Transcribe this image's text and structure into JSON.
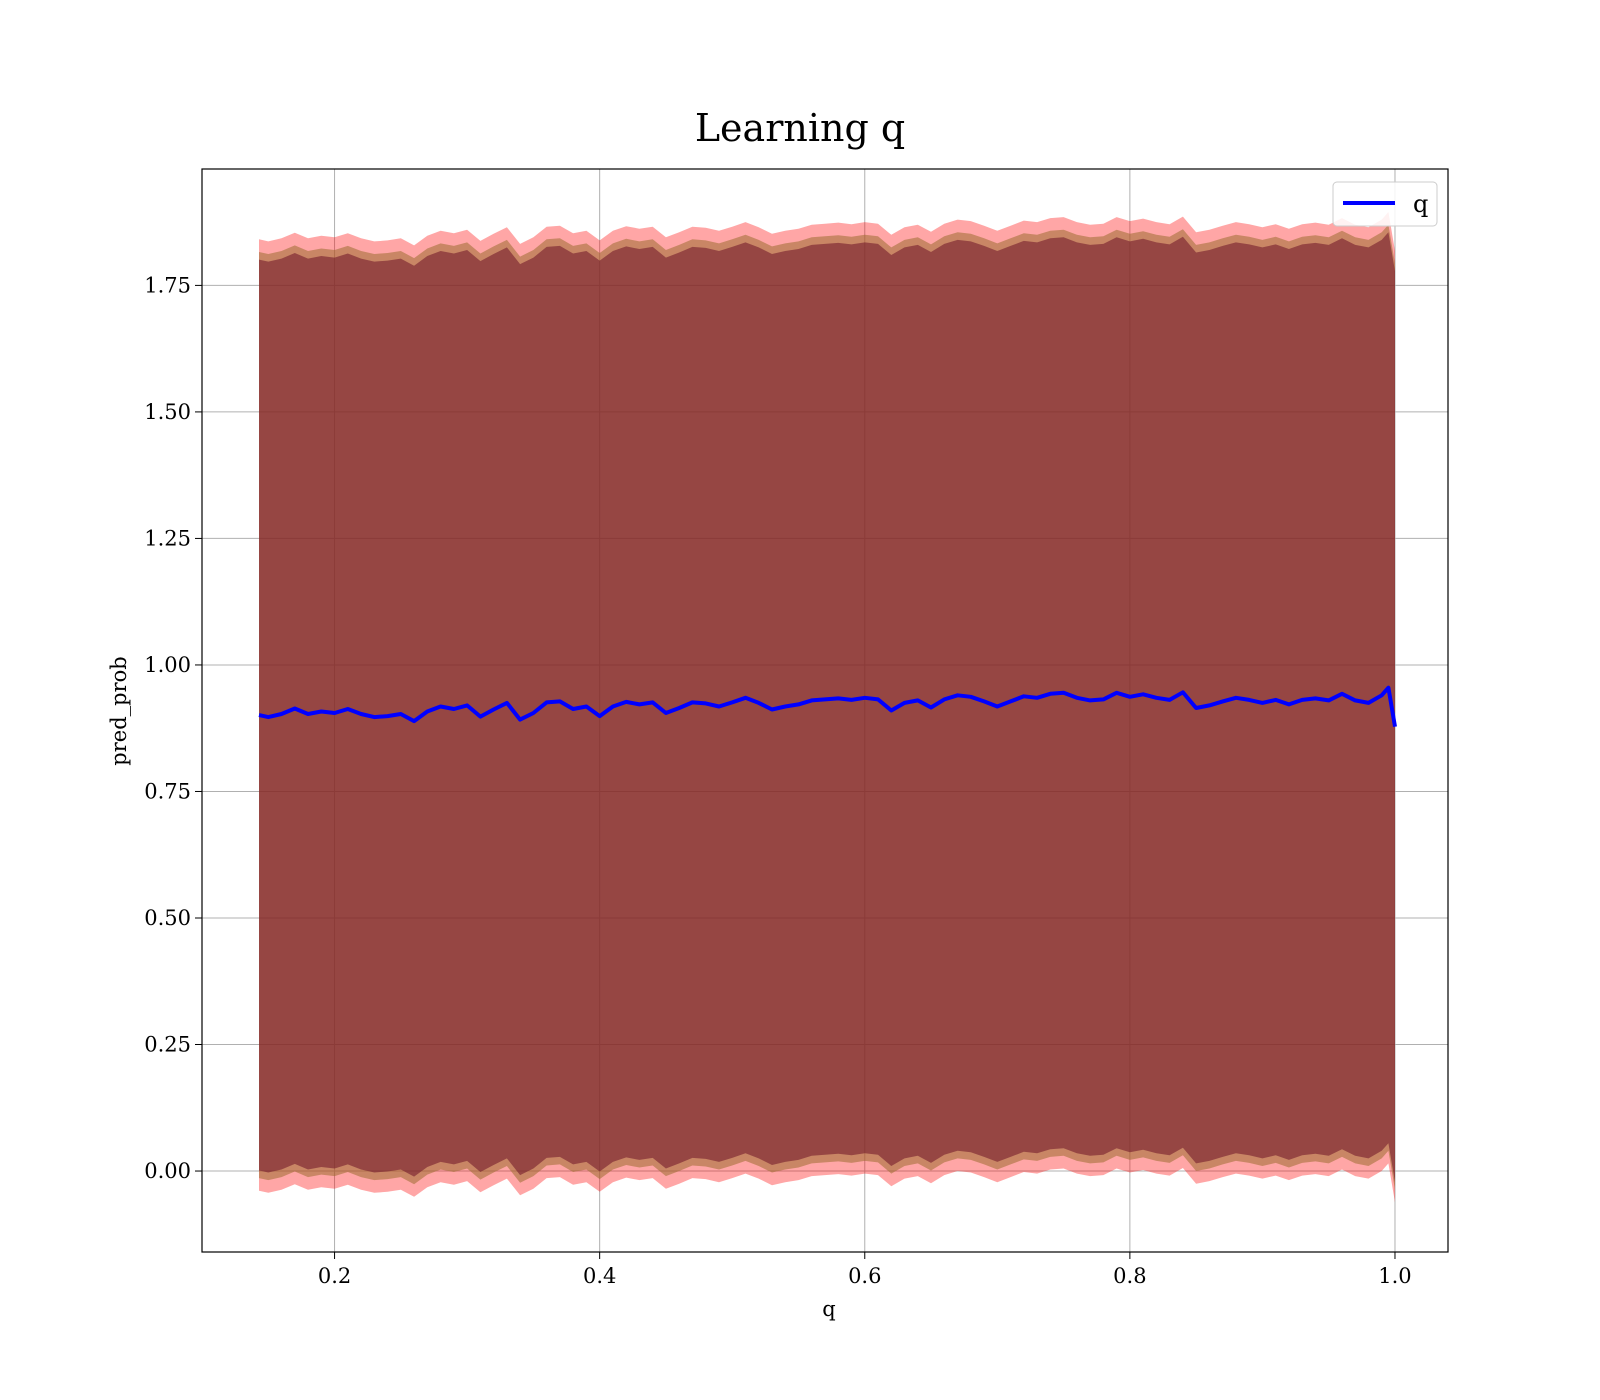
{
  "chart_data": {
    "type": "line",
    "title": "Learning q",
    "xlabel": "q",
    "ylabel": "pred_prob",
    "xlim": [
      0.1,
      1.04
    ],
    "ylim": [
      -0.16,
      1.98
    ],
    "xticks": [
      0.2,
      0.4,
      0.6,
      0.8,
      1.0
    ],
    "xtick_labels": [
      "0.2",
      "0.4",
      "0.6",
      "0.8",
      "1.0"
    ],
    "yticks": [
      0.0,
      0.25,
      0.5,
      0.75,
      1.0,
      1.25,
      1.5,
      1.75
    ],
    "ytick_labels": [
      "0.00",
      "0.25",
      "0.50",
      "0.75",
      "1.00",
      "1.25",
      "1.50",
      "1.75"
    ],
    "grid": true,
    "legend": {
      "placement": "upper right",
      "entries": [
        "q"
      ]
    },
    "colors": {
      "line": "#0000ff",
      "band_outer": "#ff0000",
      "band_mid": "#9c6b30",
      "band_inner": "#6b1228",
      "grid": "#b0b0b0"
    },
    "series": [
      {
        "name": "q",
        "x": [
          0.143,
          0.15,
          0.16,
          0.17,
          0.18,
          0.19,
          0.2,
          0.21,
          0.22,
          0.23,
          0.24,
          0.25,
          0.26,
          0.27,
          0.28,
          0.29,
          0.3,
          0.31,
          0.32,
          0.33,
          0.34,
          0.35,
          0.36,
          0.37,
          0.38,
          0.39,
          0.4,
          0.41,
          0.42,
          0.43,
          0.44,
          0.45,
          0.46,
          0.47,
          0.48,
          0.49,
          0.5,
          0.51,
          0.52,
          0.53,
          0.54,
          0.55,
          0.56,
          0.57,
          0.58,
          0.59,
          0.6,
          0.61,
          0.62,
          0.63,
          0.64,
          0.65,
          0.66,
          0.67,
          0.68,
          0.69,
          0.7,
          0.71,
          0.72,
          0.73,
          0.74,
          0.75,
          0.76,
          0.77,
          0.78,
          0.79,
          0.8,
          0.81,
          0.82,
          0.83,
          0.84,
          0.85,
          0.86,
          0.87,
          0.88,
          0.89,
          0.9,
          0.91,
          0.92,
          0.93,
          0.94,
          0.95,
          0.96,
          0.97,
          0.98,
          0.99,
          0.995,
          1.0
        ],
        "y": [
          0.901,
          0.897,
          0.903,
          0.914,
          0.903,
          0.908,
          0.905,
          0.913,
          0.903,
          0.897,
          0.899,
          0.903,
          0.889,
          0.908,
          0.918,
          0.913,
          0.92,
          0.898,
          0.912,
          0.925,
          0.892,
          0.905,
          0.926,
          0.928,
          0.913,
          0.918,
          0.899,
          0.918,
          0.927,
          0.922,
          0.926,
          0.905,
          0.915,
          0.926,
          0.924,
          0.918,
          0.926,
          0.935,
          0.925,
          0.912,
          0.918,
          0.922,
          0.93,
          0.932,
          0.934,
          0.931,
          0.935,
          0.932,
          0.91,
          0.925,
          0.93,
          0.916,
          0.932,
          0.94,
          0.937,
          0.928,
          0.918,
          0.928,
          0.938,
          0.935,
          0.943,
          0.945,
          0.935,
          0.93,
          0.932,
          0.945,
          0.937,
          0.942,
          0.935,
          0.931,
          0.946,
          0.915,
          0.92,
          0.928,
          0.935,
          0.931,
          0.925,
          0.931,
          0.922,
          0.931,
          0.934,
          0.93,
          0.943,
          0.93,
          0.925,
          0.94,
          0.955,
          0.878
        ]
      }
    ],
    "bands": {
      "outer_offset": 0.94,
      "mid_offset": 0.915,
      "inner_offset": 0.9
    }
  }
}
